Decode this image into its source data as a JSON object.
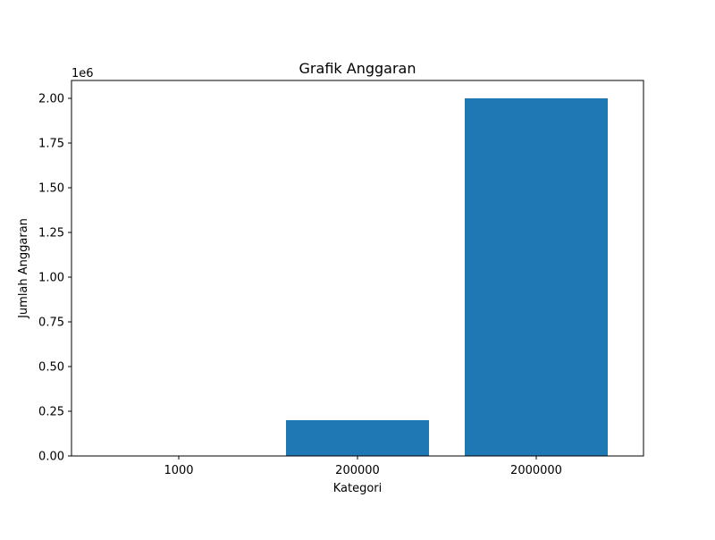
{
  "chart_data": {
    "type": "bar",
    "title": "Grafik Anggaran",
    "xlabel": "Kategori",
    "ylabel": "Jumlah Anggaran",
    "categories": [
      "1000",
      "200000",
      "2000000"
    ],
    "values": [
      1000,
      200000,
      2000000
    ],
    "ylim": [
      0,
      2100000
    ],
    "y_ticks": [
      0,
      250000,
      500000,
      750000,
      1000000,
      1250000,
      1500000,
      1750000,
      2000000
    ],
    "y_tick_labels": [
      "0.00",
      "0.25",
      "0.50",
      "0.75",
      "1.00",
      "1.25",
      "1.50",
      "1.75",
      "2.00"
    ],
    "y_offset_label": "1e6",
    "bar_color": "#1f77b4",
    "grid": false,
    "legend": "none"
  }
}
